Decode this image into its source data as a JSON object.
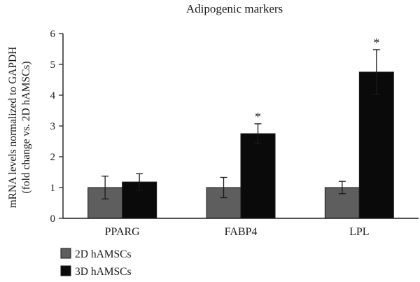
{
  "chart_data": {
    "type": "bar",
    "title": "Adipogenic markers",
    "ylabel_lines": [
      "mRNA levels normalized to GAPDH",
      "(fold change vs. 2D hAMSCs)"
    ],
    "xlabel": "",
    "categories": [
      "PPARG",
      "FABP4",
      "LPL"
    ],
    "ylim": [
      0,
      6
    ],
    "yticks": [
      0,
      1,
      2,
      3,
      4,
      5,
      6
    ],
    "grid": false,
    "legend_position": "bottom-left",
    "series": [
      {
        "name": "2D hAMSCs",
        "color": "#5e5e5e",
        "values": [
          1.0,
          1.0,
          1.0
        ],
        "errors": [
          0.37,
          0.33,
          0.2
        ]
      },
      {
        "name": "3D hAMSCs",
        "color": "#0a0a0a",
        "values": [
          1.18,
          2.75,
          4.75
        ],
        "errors": [
          0.27,
          0.32,
          0.73
        ]
      }
    ],
    "annotations": [
      {
        "category": "FABP4",
        "series": "3D hAMSCs",
        "text": "*"
      },
      {
        "category": "LPL",
        "series": "3D hAMSCs",
        "text": "*"
      }
    ]
  }
}
